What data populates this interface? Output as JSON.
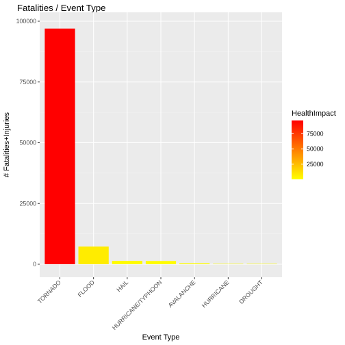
{
  "chart_data": {
    "type": "bar",
    "title": "Fatalities / Event Type",
    "xlabel": "Event Type",
    "ylabel": "# Fatalities+Injuries",
    "categories": [
      "TORNADO",
      "FLOOD",
      "HAIL",
      "HURRICANE/TYPHOON",
      "AVALANCHE",
      "HURRICANE",
      "DROUGHT"
    ],
    "values": [
      96979,
      7259,
      1376,
      1339,
      394,
      107,
      23
    ],
    "ylim": [
      0,
      100000
    ],
    "y_ticks": [
      0,
      25000,
      50000,
      75000,
      100000
    ],
    "y_tick_labels": [
      "0",
      "25000",
      "50000",
      "75000",
      "100000"
    ],
    "grid": true,
    "fill_scale": {
      "low": "#ffff00",
      "high": "#ff0000"
    },
    "legend": {
      "title": "HealthImpact",
      "position": "right",
      "ticks": [
        75000,
        50000,
        25000
      ],
      "tick_labels": [
        "75000",
        "50000",
        "25000"
      ]
    }
  }
}
